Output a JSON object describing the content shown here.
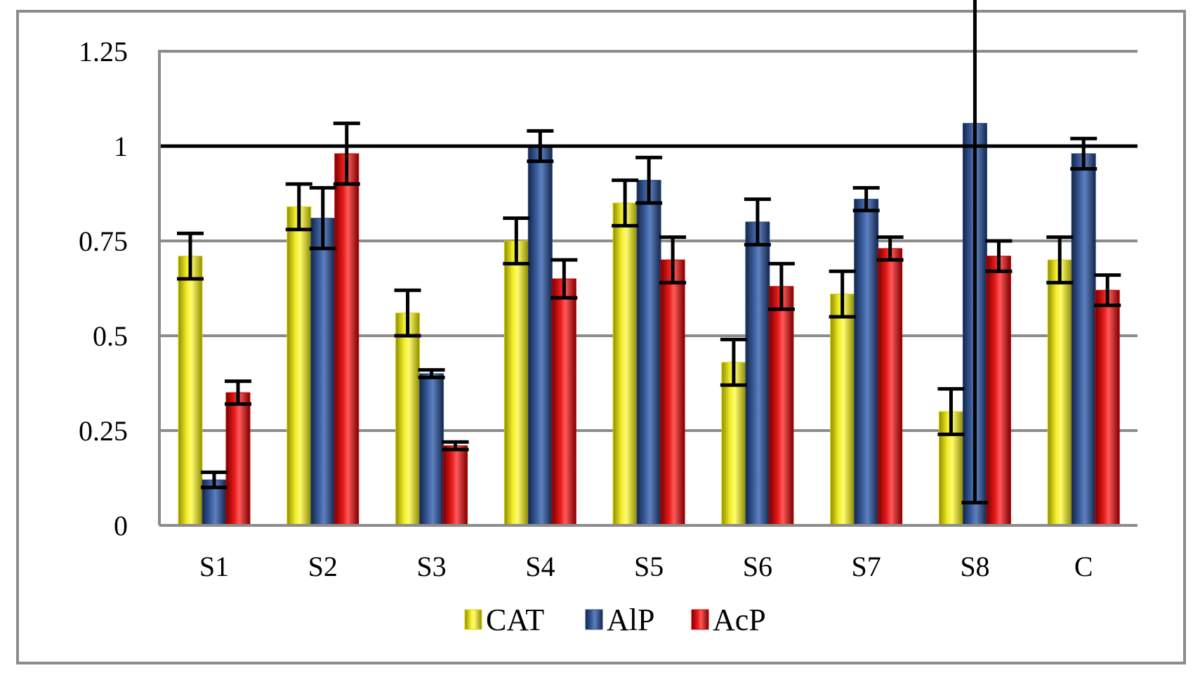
{
  "chart_data": {
    "type": "bar",
    "title": "",
    "xlabel": "",
    "ylabel": "",
    "categories": [
      "S1",
      "S2",
      "S3",
      "S4",
      "S5",
      "S6",
      "S7",
      "S8",
      "C"
    ],
    "ylim": [
      0,
      1.25
    ],
    "yticks": [
      0,
      0.25,
      0.5,
      0.75,
      1,
      1.25
    ],
    "ytick_labels": [
      "0",
      "0.25",
      "0.5",
      "0.75",
      "1",
      "1.25"
    ],
    "grid": true,
    "reference_line": 1,
    "legend_position": "bottom",
    "series": [
      {
        "name": "CAT",
        "color": "#d9d400",
        "values": [
          0.71,
          0.84,
          0.56,
          0.75,
          0.85,
          0.43,
          0.61,
          0.3,
          0.7
        ],
        "errors": [
          0.06,
          0.06,
          0.06,
          0.06,
          0.06,
          0.06,
          0.06,
          0.06,
          0.06
        ]
      },
      {
        "name": "AlP",
        "color": "#2b4a80",
        "values": [
          0.12,
          0.81,
          0.4,
          1.0,
          0.91,
          0.8,
          0.86,
          1.06,
          0.98
        ],
        "errors": [
          0.02,
          0.08,
          0.01,
          0.04,
          0.06,
          0.06,
          0.03,
          1.0,
          0.04
        ]
      },
      {
        "name": "AcP",
        "color": "#d40000",
        "values": [
          0.35,
          0.98,
          0.21,
          0.65,
          0.7,
          0.63,
          0.73,
          0.71,
          0.62
        ],
        "errors": [
          0.03,
          0.08,
          0.01,
          0.05,
          0.06,
          0.06,
          0.03,
          0.04,
          0.04
        ]
      }
    ]
  }
}
